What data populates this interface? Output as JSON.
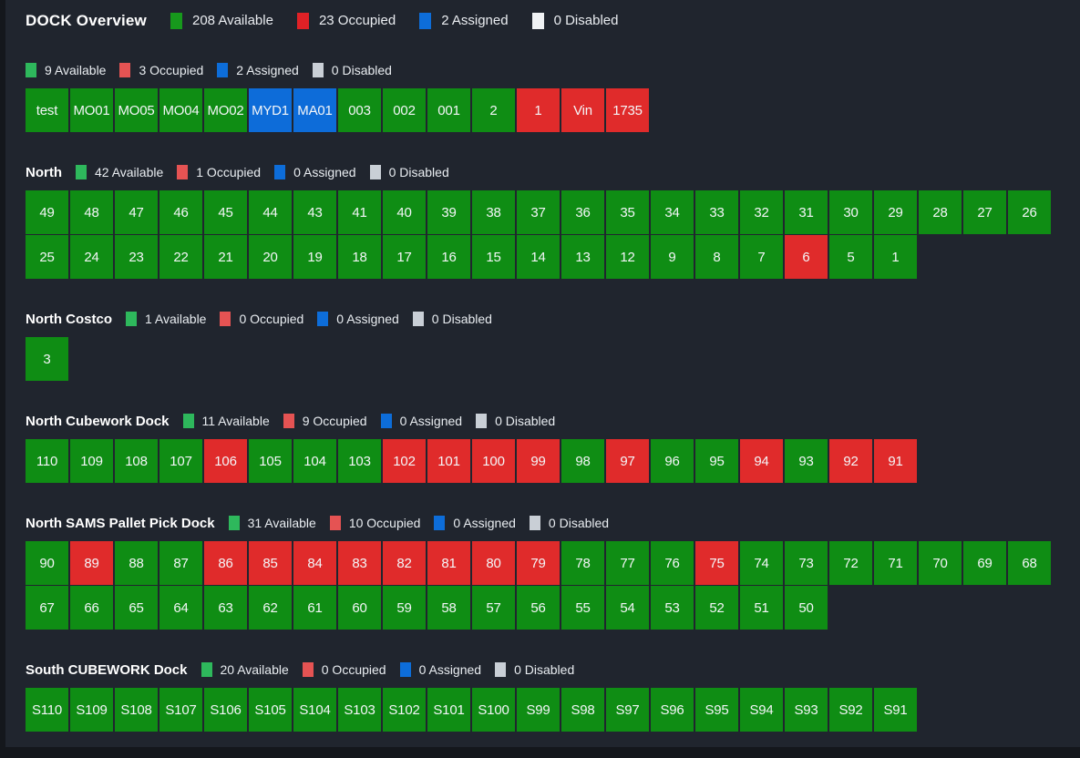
{
  "header": {
    "title": "DOCK Overview",
    "legend": [
      {
        "status": "available",
        "label": "208 Available",
        "color": "#17991c"
      },
      {
        "status": "occupied",
        "label": "23 Occupied",
        "color": "#e02126"
      },
      {
        "status": "assigned",
        "label": "2 Assigned",
        "color": "#0d6dd9"
      },
      {
        "status": "disabled",
        "label": "0 Disabled",
        "color": "#f0f2f4"
      }
    ]
  },
  "status_colors": {
    "available": "#0f8d14",
    "occupied": "#e02b2b",
    "assigned": "#0d6cd9",
    "disabled": "#ced3d9"
  },
  "section_legend_colors": {
    "available": "#2eb85c",
    "occupied": "#e55353",
    "assigned": "#0d6dd9",
    "disabled": "#c9cfd6"
  },
  "sections": [
    {
      "id": "group-1",
      "title": "",
      "legend": [
        {
          "status": "available",
          "label": "9 Available"
        },
        {
          "status": "occupied",
          "label": "3 Occupied"
        },
        {
          "status": "assigned",
          "label": "2 Assigned"
        },
        {
          "status": "disabled",
          "label": "0 Disabled"
        }
      ],
      "tiles": [
        [
          "test",
          "available"
        ],
        [
          "MO01",
          "available"
        ],
        [
          "MO05",
          "available"
        ],
        [
          "MO04",
          "available"
        ],
        [
          "MO02",
          "available"
        ],
        [
          "MYD1",
          "assigned"
        ],
        [
          "MA01",
          "assigned"
        ],
        [
          "003",
          "available"
        ],
        [
          "002",
          "available"
        ],
        [
          "001",
          "available"
        ],
        [
          "2",
          "available"
        ],
        [
          "1",
          "occupied"
        ],
        [
          "Vin",
          "occupied"
        ],
        [
          "1735",
          "occupied"
        ]
      ]
    },
    {
      "id": "north",
      "title": "North",
      "legend": [
        {
          "status": "available",
          "label": "42 Available"
        },
        {
          "status": "occupied",
          "label": "1 Occupied"
        },
        {
          "status": "assigned",
          "label": "0 Assigned"
        },
        {
          "status": "disabled",
          "label": "0 Disabled"
        }
      ],
      "tiles": [
        [
          "49",
          "available"
        ],
        [
          "48",
          "available"
        ],
        [
          "47",
          "available"
        ],
        [
          "46",
          "available"
        ],
        [
          "45",
          "available"
        ],
        [
          "44",
          "available"
        ],
        [
          "43",
          "available"
        ],
        [
          "41",
          "available"
        ],
        [
          "40",
          "available"
        ],
        [
          "39",
          "available"
        ],
        [
          "38",
          "available"
        ],
        [
          "37",
          "available"
        ],
        [
          "36",
          "available"
        ],
        [
          "35",
          "available"
        ],
        [
          "34",
          "available"
        ],
        [
          "33",
          "available"
        ],
        [
          "32",
          "available"
        ],
        [
          "31",
          "available"
        ],
        [
          "30",
          "available"
        ],
        [
          "29",
          "available"
        ],
        [
          "28",
          "available"
        ],
        [
          "27",
          "available"
        ],
        [
          "26",
          "available"
        ],
        [
          "25",
          "available"
        ],
        [
          "24",
          "available"
        ],
        [
          "23",
          "available"
        ],
        [
          "22",
          "available"
        ],
        [
          "21",
          "available"
        ],
        [
          "20",
          "available"
        ],
        [
          "19",
          "available"
        ],
        [
          "18",
          "available"
        ],
        [
          "17",
          "available"
        ],
        [
          "16",
          "available"
        ],
        [
          "15",
          "available"
        ],
        [
          "14",
          "available"
        ],
        [
          "13",
          "available"
        ],
        [
          "12",
          "available"
        ],
        [
          "9",
          "available"
        ],
        [
          "8",
          "available"
        ],
        [
          "7",
          "available"
        ],
        [
          "6",
          "occupied"
        ],
        [
          "5",
          "available"
        ],
        [
          "1",
          "available"
        ]
      ]
    },
    {
      "id": "north-costco",
      "title": "North Costco",
      "legend": [
        {
          "status": "available",
          "label": "1 Available"
        },
        {
          "status": "occupied",
          "label": "0 Occupied"
        },
        {
          "status": "assigned",
          "label": "0 Assigned"
        },
        {
          "status": "disabled",
          "label": "0 Disabled"
        }
      ],
      "tiles": [
        [
          "3",
          "available"
        ]
      ]
    },
    {
      "id": "north-cubework-dock",
      "title": "North Cubework Dock",
      "legend": [
        {
          "status": "available",
          "label": "11 Available"
        },
        {
          "status": "occupied",
          "label": "9 Occupied"
        },
        {
          "status": "assigned",
          "label": "0 Assigned"
        },
        {
          "status": "disabled",
          "label": "0 Disabled"
        }
      ],
      "tiles": [
        [
          "110",
          "available"
        ],
        [
          "109",
          "available"
        ],
        [
          "108",
          "available"
        ],
        [
          "107",
          "available"
        ],
        [
          "106",
          "occupied"
        ],
        [
          "105",
          "available"
        ],
        [
          "104",
          "available"
        ],
        [
          "103",
          "available"
        ],
        [
          "102",
          "occupied"
        ],
        [
          "101",
          "occupied"
        ],
        [
          "100",
          "occupied"
        ],
        [
          "99",
          "occupied"
        ],
        [
          "98",
          "available"
        ],
        [
          "97",
          "occupied"
        ],
        [
          "96",
          "available"
        ],
        [
          "95",
          "available"
        ],
        [
          "94",
          "occupied"
        ],
        [
          "93",
          "available"
        ],
        [
          "92",
          "occupied"
        ],
        [
          "91",
          "occupied"
        ]
      ]
    },
    {
      "id": "north-sams-pallet-pick-dock",
      "title": "North SAMS Pallet Pick Dock",
      "legend": [
        {
          "status": "available",
          "label": "31 Available"
        },
        {
          "status": "occupied",
          "label": "10 Occupied"
        },
        {
          "status": "assigned",
          "label": "0 Assigned"
        },
        {
          "status": "disabled",
          "label": "0 Disabled"
        }
      ],
      "tiles": [
        [
          "90",
          "available"
        ],
        [
          "89",
          "occupied"
        ],
        [
          "88",
          "available"
        ],
        [
          "87",
          "available"
        ],
        [
          "86",
          "occupied"
        ],
        [
          "85",
          "occupied"
        ],
        [
          "84",
          "occupied"
        ],
        [
          "83",
          "occupied"
        ],
        [
          "82",
          "occupied"
        ],
        [
          "81",
          "occupied"
        ],
        [
          "80",
          "occupied"
        ],
        [
          "79",
          "occupied"
        ],
        [
          "78",
          "available"
        ],
        [
          "77",
          "available"
        ],
        [
          "76",
          "available"
        ],
        [
          "75",
          "occupied"
        ],
        [
          "74",
          "available"
        ],
        [
          "73",
          "available"
        ],
        [
          "72",
          "available"
        ],
        [
          "71",
          "available"
        ],
        [
          "70",
          "available"
        ],
        [
          "69",
          "available"
        ],
        [
          "68",
          "available"
        ],
        [
          "67",
          "available"
        ],
        [
          "66",
          "available"
        ],
        [
          "65",
          "available"
        ],
        [
          "64",
          "available"
        ],
        [
          "63",
          "available"
        ],
        [
          "62",
          "available"
        ],
        [
          "61",
          "available"
        ],
        [
          "60",
          "available"
        ],
        [
          "59",
          "available"
        ],
        [
          "58",
          "available"
        ],
        [
          "57",
          "available"
        ],
        [
          "56",
          "available"
        ],
        [
          "55",
          "available"
        ],
        [
          "54",
          "available"
        ],
        [
          "53",
          "available"
        ],
        [
          "52",
          "available"
        ],
        [
          "51",
          "available"
        ],
        [
          "50",
          "available"
        ]
      ]
    },
    {
      "id": "south-cubework-dock",
      "title": "South CUBEWORK Dock",
      "legend": [
        {
          "status": "available",
          "label": "20 Available"
        },
        {
          "status": "occupied",
          "label": "0 Occupied"
        },
        {
          "status": "assigned",
          "label": "0 Assigned"
        },
        {
          "status": "disabled",
          "label": "0 Disabled"
        }
      ],
      "tiles": [
        [
          "S110",
          "available"
        ],
        [
          "S109",
          "available"
        ],
        [
          "S108",
          "available"
        ],
        [
          "S107",
          "available"
        ],
        [
          "S106",
          "available"
        ],
        [
          "S105",
          "available"
        ],
        [
          "S104",
          "available"
        ],
        [
          "S103",
          "available"
        ],
        [
          "S102",
          "available"
        ],
        [
          "S101",
          "available"
        ],
        [
          "S100",
          "available"
        ],
        [
          "S99",
          "available"
        ],
        [
          "S98",
          "available"
        ],
        [
          "S97",
          "available"
        ],
        [
          "S96",
          "available"
        ],
        [
          "S95",
          "available"
        ],
        [
          "S94",
          "available"
        ],
        [
          "S93",
          "available"
        ],
        [
          "S92",
          "available"
        ],
        [
          "S91",
          "available"
        ]
      ]
    }
  ]
}
